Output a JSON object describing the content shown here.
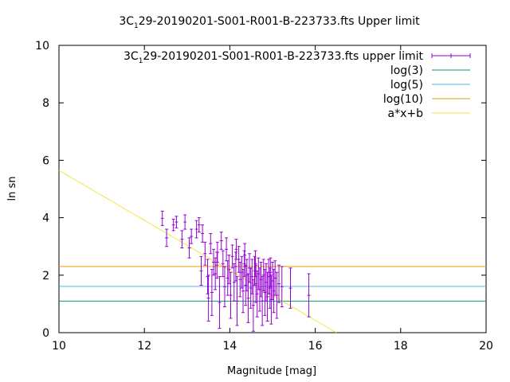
{
  "chart_data": {
    "type": "scatter",
    "title": "3C_129-20190201-S001-R001-B-223733.fts Upper limit",
    "title_parts": {
      "pre": "3C",
      "sub": "1",
      "post": "29-20190201-S001-R001-B-223733.fts Upper limit"
    },
    "xlabel": "Magnitude [mag]",
    "ylabel": "ln sn",
    "xlim": [
      10,
      20
    ],
    "ylim": [
      0,
      10
    ],
    "xticks": [
      "10",
      "12",
      "14",
      "16",
      "18",
      "20"
    ],
    "yticks": [
      "0",
      "2",
      "4",
      "6",
      "8",
      "10"
    ],
    "grid": false,
    "legend_position": "top-right",
    "legend": [
      {
        "parts": {
          "pre": "3C",
          "sub": "1",
          "post": "29-20190201-S001-R001-B-223733.fts upper limit"
        },
        "style": "errorbar",
        "color": "#9400d3"
      },
      {
        "label": "log(3)",
        "style": "line",
        "color": "#009e73"
      },
      {
        "label": "log(5)",
        "style": "line",
        "color": "#56b4e9"
      },
      {
        "label": "log(10)",
        "style": "line",
        "color": "#e69f00"
      },
      {
        "label": "a*x+b",
        "style": "line",
        "color": "#f0e442"
      }
    ],
    "hlines": [
      {
        "name": "log(3)",
        "y": 1.0986,
        "color": "#009e73"
      },
      {
        "name": "log(5)",
        "y": 1.6094,
        "color": "#56b4e9"
      },
      {
        "name": "log(10)",
        "y": 2.3026,
        "color": "#e69f00"
      }
    ],
    "fit": {
      "name": "a*x+b",
      "a": -0.87,
      "b": 14.35,
      "color": "#f0e442"
    },
    "points_color": "#9400d3",
    "points": [
      {
        "x": 12.42,
        "y": 3.98,
        "e": 0.25
      },
      {
        "x": 12.52,
        "y": 3.3,
        "e": 0.3
      },
      {
        "x": 12.68,
        "y": 3.75,
        "e": 0.2
      },
      {
        "x": 12.75,
        "y": 3.85,
        "e": 0.2
      },
      {
        "x": 12.88,
        "y": 3.25,
        "e": 0.3
      },
      {
        "x": 12.95,
        "y": 3.85,
        "e": 0.25
      },
      {
        "x": 13.05,
        "y": 2.95,
        "e": 0.35
      },
      {
        "x": 13.1,
        "y": 3.35,
        "e": 0.25
      },
      {
        "x": 13.22,
        "y": 3.6,
        "e": 0.3
      },
      {
        "x": 13.28,
        "y": 3.75,
        "e": 0.25
      },
      {
        "x": 13.33,
        "y": 2.15,
        "e": 0.5
      },
      {
        "x": 13.36,
        "y": 3.45,
        "e": 0.3
      },
      {
        "x": 13.42,
        "y": 2.75,
        "e": 0.4
      },
      {
        "x": 13.48,
        "y": 1.95,
        "e": 0.6
      },
      {
        "x": 13.55,
        "y": 3.1,
        "e": 0.35
      },
      {
        "x": 13.58,
        "y": 1.4,
        "e": 0.8
      },
      {
        "x": 13.62,
        "y": 2.45,
        "e": 0.45
      },
      {
        "x": 13.66,
        "y": 2.05,
        "e": 0.55
      },
      {
        "x": 13.71,
        "y": 2.8,
        "e": 0.35
      },
      {
        "x": 13.76,
        "y": 1.05,
        "e": 0.9
      },
      {
        "x": 13.8,
        "y": 3.2,
        "e": 0.3
      },
      {
        "x": 13.84,
        "y": 2.4,
        "e": 0.45
      },
      {
        "x": 13.88,
        "y": 1.6,
        "e": 0.7
      },
      {
        "x": 13.92,
        "y": 2.9,
        "e": 0.4
      },
      {
        "x": 13.95,
        "y": 1.9,
        "e": 0.6
      },
      {
        "x": 13.98,
        "y": 2.2,
        "e": 0.5
      },
      {
        "x": 14.02,
        "y": 1.3,
        "e": 0.8
      },
      {
        "x": 14.06,
        "y": 2.65,
        "e": 0.4
      },
      {
        "x": 14.1,
        "y": 1.75,
        "e": 0.65
      },
      {
        "x": 14.14,
        "y": 2.3,
        "e": 0.5
      },
      {
        "x": 14.17,
        "y": 1.1,
        "e": 0.85
      },
      {
        "x": 14.21,
        "y": 2.55,
        "e": 0.45
      },
      {
        "x": 14.24,
        "y": 1.85,
        "e": 0.6
      },
      {
        "x": 14.28,
        "y": 2.1,
        "e": 0.55
      },
      {
        "x": 14.31,
        "y": 1.45,
        "e": 0.75
      },
      {
        "x": 14.34,
        "y": 2.4,
        "e": 0.45
      },
      {
        "x": 14.37,
        "y": 1.65,
        "e": 0.7
      },
      {
        "x": 14.4,
        "y": 2.0,
        "e": 0.55
      },
      {
        "x": 14.43,
        "y": 1.2,
        "e": 0.85
      },
      {
        "x": 14.46,
        "y": 2.25,
        "e": 0.5
      },
      {
        "x": 14.49,
        "y": 1.55,
        "e": 0.7
      },
      {
        "x": 14.52,
        "y": 1.95,
        "e": 0.6
      },
      {
        "x": 14.55,
        "y": 0.95,
        "e": 0.9
      },
      {
        "x": 14.58,
        "y": 2.15,
        "e": 0.5
      },
      {
        "x": 14.61,
        "y": 1.7,
        "e": 0.65
      },
      {
        "x": 14.64,
        "y": 1.35,
        "e": 0.8
      },
      {
        "x": 14.67,
        "y": 2.05,
        "e": 0.55
      },
      {
        "x": 14.7,
        "y": 1.5,
        "e": 0.75
      },
      {
        "x": 14.73,
        "y": 1.85,
        "e": 0.6
      },
      {
        "x": 14.76,
        "y": 1.1,
        "e": 0.85
      },
      {
        "x": 14.79,
        "y": 2.0,
        "e": 0.55
      },
      {
        "x": 14.82,
        "y": 1.4,
        "e": 0.8
      },
      {
        "x": 14.85,
        "y": 1.75,
        "e": 0.65
      },
      {
        "x": 14.88,
        "y": 1.25,
        "e": 0.85
      },
      {
        "x": 14.91,
        "y": 1.95,
        "e": 0.6
      },
      {
        "x": 14.94,
        "y": 1.55,
        "e": 0.7
      },
      {
        "x": 14.97,
        "y": 1.15,
        "e": 0.85
      },
      {
        "x": 15.0,
        "y": 1.8,
        "e": 0.65
      },
      {
        "x": 15.03,
        "y": 1.45,
        "e": 0.75
      },
      {
        "x": 15.06,
        "y": 1.9,
        "e": 0.6
      },
      {
        "x": 15.1,
        "y": 1.3,
        "e": 0.8
      },
      {
        "x": 15.15,
        "y": 1.7,
        "e": 0.65
      },
      {
        "x": 15.22,
        "y": 1.6,
        "e": 0.7
      },
      {
        "x": 15.42,
        "y": 1.55,
        "e": 0.7
      },
      {
        "x": 15.85,
        "y": 1.3,
        "e": 0.75
      },
      {
        "x": 14.15,
        "y": 2.9,
        "e": 0.35
      },
      {
        "x": 14.35,
        "y": 2.7,
        "e": 0.4
      },
      {
        "x": 13.7,
        "y": 2.35,
        "e": 0.45
      },
      {
        "x": 14.6,
        "y": 2.4,
        "e": 0.45
      },
      {
        "x": 14.95,
        "y": 2.1,
        "e": 0.5
      },
      {
        "x": 13.5,
        "y": 1.2,
        "e": 0.8
      }
    ]
  }
}
